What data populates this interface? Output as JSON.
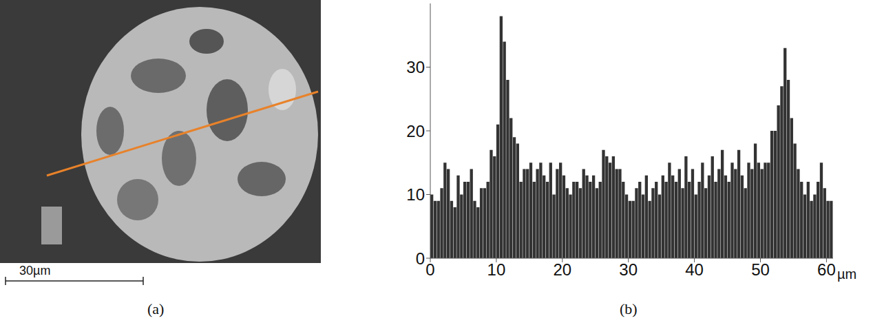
{
  "figure": {
    "panel_a_label": "(a)",
    "scale_bar": "30µm",
    "line_color": "#e8822a"
  },
  "chart_data": {
    "type": "bar",
    "title": "(b)",
    "x_label": "µm",
    "color": "#333333",
    "grid": false,
    "x": [
      0.25,
      0.75,
      1.25,
      1.75,
      2.25,
      2.75,
      3.25,
      3.75,
      4.25,
      4.75,
      5.25,
      5.75,
      6.25,
      6.75,
      7.25,
      7.75,
      8.25,
      8.75,
      9.25,
      9.75,
      10.25,
      10.75,
      11.25,
      11.75,
      12.25,
      12.75,
      13.25,
      13.75,
      14.25,
      14.75,
      15.25,
      15.75,
      16.25,
      16.75,
      17.25,
      17.75,
      18.25,
      18.75,
      19.25,
      19.75,
      20.25,
      20.75,
      21.25,
      21.75,
      22.25,
      22.75,
      23.25,
      23.75,
      24.25,
      24.75,
      25.25,
      25.75,
      26.25,
      26.75,
      27.25,
      27.75,
      28.25,
      28.75,
      29.25,
      29.75,
      30.25,
      30.75,
      31.25,
      31.75,
      32.25,
      32.75,
      33.25,
      33.75,
      34.25,
      34.75,
      35.25,
      35.75,
      36.25,
      36.75,
      37.25,
      37.75,
      38.25,
      38.75,
      39.25,
      39.75,
      40.25,
      40.75,
      41.25,
      41.75,
      42.25,
      42.75,
      43.25,
      43.75,
      44.25,
      44.75,
      45.25,
      45.75,
      46.25,
      46.75,
      47.25,
      47.75,
      48.25,
      48.75,
      49.25,
      49.75,
      50.25,
      50.75,
      51.25,
      51.75,
      52.25,
      52.75,
      53.25,
      53.75,
      54.25,
      54.75,
      55.25,
      55.75,
      56.25,
      56.75,
      57.25,
      57.75,
      58.25,
      58.75,
      59.25,
      59.75,
      60.25,
      60.75
    ],
    "values": [
      10,
      9,
      9,
      11,
      15,
      14,
      9,
      8,
      13,
      10,
      12,
      12,
      14,
      9,
      8,
      11,
      11,
      12,
      17,
      16,
      21,
      38,
      34,
      28,
      22,
      19,
      18,
      12,
      14,
      14,
      15,
      12,
      14,
      15,
      13,
      12,
      15,
      10,
      14,
      15,
      13,
      11,
      10,
      12,
      12,
      11,
      14,
      13,
      12,
      13,
      11,
      12,
      17,
      16,
      15,
      16,
      14,
      14,
      12,
      10,
      9,
      9,
      11,
      12,
      10,
      13,
      9,
      11,
      12,
      10,
      13,
      12,
      15,
      13,
      12,
      14,
      11,
      16,
      12,
      14,
      10,
      12,
      15,
      11,
      13,
      16,
      12,
      14,
      17,
      13,
      12,
      15,
      14,
      17,
      13,
      11,
      15,
      14,
      18,
      15,
      14,
      15,
      15,
      20,
      20,
      24,
      27,
      33,
      28,
      22,
      18,
      14,
      12,
      10,
      12,
      9,
      10,
      12,
      15,
      11,
      9,
      9
    ],
    "xlim": [
      0,
      61
    ],
    "xticks": [
      0,
      10,
      20,
      30,
      40,
      50,
      60
    ],
    "ylim": [
      0,
      40
    ],
    "yticks": [
      0,
      10,
      20,
      30
    ]
  }
}
